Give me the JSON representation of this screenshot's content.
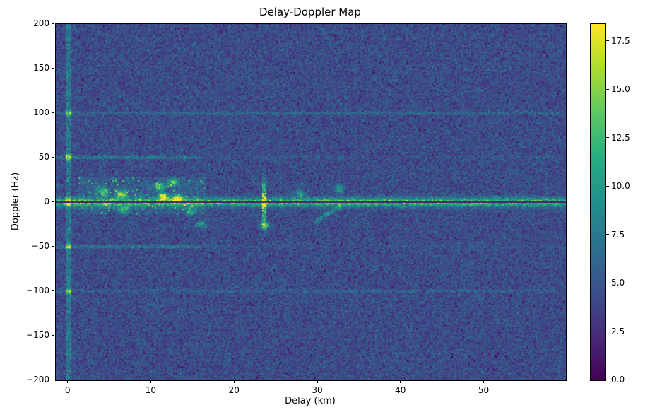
{
  "chart_data": {
    "type": "heatmap",
    "title": "Delay-Doppler Map",
    "xlabel": "Delay (km)",
    "ylabel": "Doppler (Hz)",
    "x_range": [
      -1.5,
      59.8
    ],
    "y_range": [
      -200,
      200
    ],
    "x_ticks": [
      0,
      10,
      20,
      30,
      40,
      50
    ],
    "y_ticks": [
      200,
      150,
      100,
      50,
      0,
      -50,
      -100,
      -150,
      -200
    ],
    "colormap": "viridis",
    "colormap_anchors": [
      "#440154",
      "#472c7a",
      "#3b518b",
      "#2c718e",
      "#21908d",
      "#27ad81",
      "#5cc863",
      "#aadc32",
      "#fde725"
    ],
    "value_range": [
      0,
      18.4
    ],
    "colorbar_ticks": [
      0.0,
      2.5,
      5.0,
      7.5,
      10.0,
      12.5,
      15.0,
      17.5
    ],
    "noise": {
      "seed": 1337,
      "mean": 4.3,
      "std": 1.15
    },
    "features": {
      "zero_doppler_ridge": {
        "doppler_hz": 0,
        "width_hz": 3.5,
        "base_amp": 9,
        "speckle_amp": 7,
        "bright_spot_prob": 0.03,
        "bright_value": 18
      },
      "zero_doppler_notch": {
        "doppler_hz": 0,
        "half_width_hz": 0.9,
        "value": 1.0
      },
      "bright_segment": {
        "delay_km": [
          29,
          37
        ],
        "min_value": 10
      },
      "harmonic_lines": [
        {
          "doppler_hz": 50,
          "amp": 3.2,
          "delay_extent_km": 16
        },
        {
          "doppler_hz": -50,
          "amp": 3.0,
          "delay_extent_km": 16
        },
        {
          "doppler_hz": 100,
          "amp": 2.2,
          "delay_extent_km": 59
        },
        {
          "doppler_hz": -100,
          "amp": 1.6,
          "delay_extent_km": 59
        }
      ],
      "zero_delay_column": {
        "delay_km": 0,
        "half_width_km": 0.35,
        "amp": 3.0,
        "spot_doppler_hz": [
          -100,
          -50,
          0,
          50,
          100
        ],
        "spot_amp": 8
      },
      "clutter_region": {
        "delay_km": [
          1.2,
          16.5
        ],
        "doppler_hz": [
          -14,
          28
        ],
        "haze_amp": 1.1,
        "speckle_prob": 0.05,
        "speckle_amp": [
          3,
          9
        ]
      },
      "clutter_blobs": [
        {
          "delay_km": 4.2,
          "doppler_hz": 12,
          "amp": 9
        },
        {
          "delay_km": 6.4,
          "doppler_hz": 9,
          "amp": 10
        },
        {
          "delay_km": 6.7,
          "doppler_hz": -9,
          "amp": 7
        },
        {
          "delay_km": 10.9,
          "doppler_hz": 17,
          "amp": 9
        },
        {
          "delay_km": 11.4,
          "doppler_hz": 6,
          "amp": 10
        },
        {
          "delay_km": 12.6,
          "doppler_hz": 22,
          "amp": 8
        },
        {
          "delay_km": 13.1,
          "doppler_hz": 4,
          "amp": 11
        },
        {
          "delay_km": 14.7,
          "doppler_hz": -11,
          "amp": 7
        },
        {
          "delay_km": 15.9,
          "doppler_hz": -25,
          "amp": 6
        }
      ],
      "spike": {
        "delay_km": 23.5,
        "half_width_km": 0.25,
        "doppler_sigma_hz": 14,
        "amp": 11,
        "dot_doppler_hz": -26,
        "dot_amp": 8
      },
      "diagonal_streak": {
        "delay_from_km": 29.6,
        "delay_to_km": 32.8,
        "doppler_from_hz": -22,
        "doppler_to_hz": -4,
        "amp": 4
      },
      "late_spots": [
        {
          "delay_km": 32.6,
          "doppler_hz": 15,
          "amp": 6
        },
        {
          "delay_km": 27.9,
          "doppler_hz": 9,
          "amp": 5
        }
      ]
    }
  }
}
